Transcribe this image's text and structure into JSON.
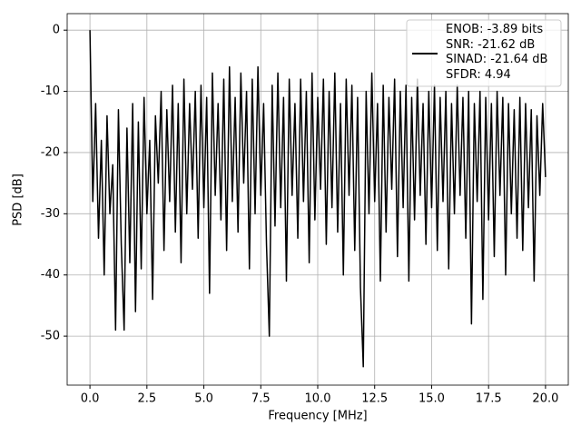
{
  "chart_data": {
    "type": "line",
    "xlabel": "Frequency [MHz]",
    "ylabel": "PSD [dB]",
    "x": [
      0,
      0.125,
      0.25,
      0.375,
      0.5,
      0.625,
      0.75,
      0.875,
      1,
      1.125,
      1.25,
      1.375,
      1.5,
      1.625,
      1.75,
      1.875,
      2,
      2.125,
      2.25,
      2.375,
      2.5,
      2.625,
      2.75,
      2.875,
      3,
      3.125,
      3.25,
      3.375,
      3.5,
      3.625,
      3.75,
      3.875,
      4,
      4.125,
      4.25,
      4.375,
      4.5,
      4.625,
      4.75,
      4.875,
      5,
      5.125,
      5.25,
      5.375,
      5.5,
      5.625,
      5.75,
      5.875,
      6,
      6.125,
      6.25,
      6.375,
      6.5,
      6.625,
      6.75,
      6.875,
      7,
      7.125,
      7.25,
      7.375,
      7.5,
      7.625,
      7.75,
      7.875,
      8,
      8.125,
      8.25,
      8.375,
      8.5,
      8.625,
      8.75,
      8.875,
      9,
      9.125,
      9.25,
      9.375,
      9.5,
      9.625,
      9.75,
      9.875,
      10,
      10.125,
      10.25,
      10.375,
      10.5,
      10.625,
      10.75,
      10.875,
      11,
      11.125,
      11.25,
      11.375,
      11.5,
      11.625,
      11.75,
      11.875,
      12,
      12.125,
      12.25,
      12.375,
      12.5,
      12.625,
      12.75,
      12.875,
      13,
      13.125,
      13.25,
      13.375,
      13.5,
      13.625,
      13.75,
      13.875,
      14,
      14.125,
      14.25,
      14.375,
      14.5,
      14.625,
      14.75,
      14.875,
      15,
      15.125,
      15.25,
      15.375,
      15.5,
      15.625,
      15.75,
      15.875,
      16,
      16.125,
      16.25,
      16.375,
      16.5,
      16.625,
      16.75,
      16.875,
      17,
      17.125,
      17.25,
      17.375,
      17.5,
      17.625,
      17.75,
      17.875,
      18,
      18.125,
      18.25,
      18.375,
      18.5,
      18.625,
      18.75,
      18.875,
      19,
      19.125,
      19.25,
      19.375,
      19.5,
      19.625,
      19.75,
      19.875,
      20
    ],
    "series": [
      {
        "name": "ENOB: -3.89 bits\nSNR: -21.62 dB\nSINAD: -21.64 dB\nSFDR: 4.94",
        "color": "#000000",
        "values": [
          0,
          -28,
          -12,
          -34,
          -18,
          -40,
          -14,
          -30,
          -22,
          -49,
          -13,
          -35,
          -49,
          -16,
          -38,
          -12,
          -46,
          -15,
          -39,
          -11,
          -30,
          -18,
          -44,
          -14,
          -25,
          -10,
          -36,
          -13,
          -28,
          -9,
          -33,
          -12,
          -38,
          -8,
          -30,
          -12,
          -26,
          -10,
          -34,
          -9,
          -29,
          -11,
          -43,
          -7,
          -27,
          -12,
          -31,
          -8,
          -36,
          -6,
          -28,
          -11,
          -33,
          -7,
          -25,
          -10,
          -39,
          -8,
          -30,
          -6,
          -27,
          -12,
          -35,
          -50,
          -9,
          -32,
          -7,
          -29,
          -11,
          -41,
          -8,
          -27,
          -12,
          -34,
          -8,
          -28,
          -10,
          -38,
          -7,
          -31,
          -11,
          -26,
          -8,
          -35,
          -10,
          -29,
          -7,
          -33,
          -12,
          -40,
          -8,
          -27,
          -9,
          -36,
          -11,
          -42,
          -55,
          -10,
          -30,
          -7,
          -28,
          -12,
          -41,
          -9,
          -33,
          -11,
          -26,
          -8,
          -37,
          -10,
          -29,
          -9,
          -41,
          -11,
          -31,
          -8,
          -27,
          -12,
          -35,
          -10,
          -29,
          -9,
          -36,
          -11,
          -28,
          -10,
          -39,
          -12,
          -30,
          -9,
          -27,
          -11,
          -34,
          -10,
          -48,
          -12,
          -28,
          -10,
          -44,
          -11,
          -31,
          -12,
          -37,
          -10,
          -27,
          -11,
          -40,
          -12,
          -30,
          -13,
          -34,
          -11,
          -36,
          -12,
          -29,
          -13,
          -41,
          -14,
          -27,
          -12,
          -24
        ]
      }
    ],
    "xlim": [
      -1.0,
      21.0
    ],
    "ylim": [
      -58.0,
      2.7
    ],
    "xticks": [
      {
        "value": 0,
        "label": "0.0"
      },
      2.5,
      {
        "value": 5,
        "label": "5.0"
      },
      7.5,
      {
        "value": 10,
        "label": "10.0"
      },
      12.5,
      {
        "value": 15,
        "label": "15.0"
      },
      17.5,
      {
        "value": 20,
        "label": "20.0"
      }
    ],
    "yticks": [
      0,
      -10,
      -20,
      -30,
      -40,
      -50
    ],
    "grid": true,
    "legend": "upper right"
  }
}
